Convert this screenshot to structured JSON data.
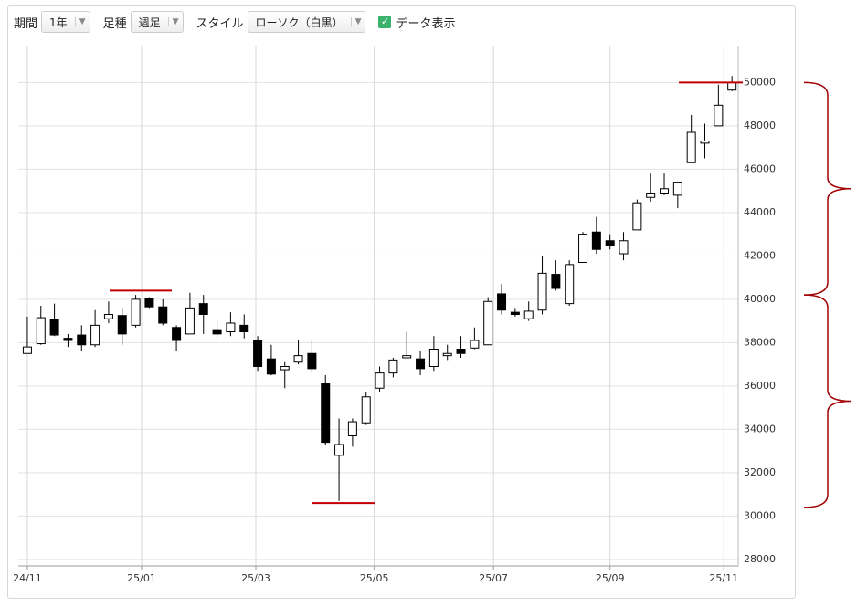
{
  "toolbar": {
    "period_label": "期間",
    "period_value": "1年",
    "bar_label": "足種",
    "bar_value": "週足",
    "style_label": "スタイル",
    "style_value": "ローソク（白黒）",
    "show_data": "データ表示"
  },
  "chart_data": {
    "type": "candlestick",
    "categories": [
      null,
      null,
      null,
      null,
      null,
      null,
      null,
      null,
      null,
      null,
      null,
      null,
      null,
      null,
      null,
      null,
      null,
      null,
      null,
      null,
      null,
      null,
      null,
      null,
      null,
      null,
      null,
      null,
      null,
      null,
      null,
      null,
      null,
      null,
      null,
      null,
      null,
      null,
      null,
      null,
      null,
      null,
      null,
      null,
      null,
      null,
      null,
      null,
      null,
      null,
      null,
      null,
      null
    ],
    "open": [
      37500,
      37950,
      39050,
      38200,
      38350,
      37900,
      39100,
      39250,
      38800,
      40050,
      39650,
      38700,
      38400,
      39800,
      38600,
      38500,
      38800,
      38100,
      37250,
      36750,
      37100,
      37500,
      36100,
      32800,
      33700,
      34300,
      35900,
      36600,
      37300,
      37250,
      36900,
      37400,
      37700,
      37750,
      37900,
      40250,
      39400,
      39100,
      39500,
      41150,
      39800,
      41700,
      43100,
      42700,
      42100,
      43200,
      44700,
      44900,
      44800,
      46300,
      47200,
      48000,
      49650
    ],
    "high": [
      39200,
      39700,
      39800,
      38400,
      38800,
      39500,
      39900,
      39600,
      40200,
      40100,
      40000,
      38800,
      40300,
      40200,
      39000,
      39400,
      39300,
      38300,
      37900,
      37100,
      38100,
      38100,
      36500,
      34500,
      34500,
      35700,
      36900,
      37300,
      38500,
      37600,
      38300,
      37900,
      38300,
      38700,
      40100,
      40700,
      39600,
      39900,
      42000,
      41800,
      41800,
      43100,
      43800,
      43000,
      43100,
      44600,
      45800,
      45800,
      45400,
      48500,
      48100,
      49900,
      50300
    ],
    "low": [
      37500,
      37900,
      38300,
      37800,
      37600,
      37800,
      38900,
      37900,
      38700,
      39600,
      38800,
      37600,
      38400,
      38400,
      38200,
      38300,
      38200,
      36700,
      36500,
      35900,
      37000,
      36600,
      33300,
      30700,
      33200,
      34200,
      35700,
      36400,
      37300,
      36500,
      36700,
      37200,
      37300,
      37700,
      37900,
      39300,
      39200,
      39000,
      39300,
      40400,
      39700,
      41700,
      42100,
      42300,
      41800,
      43200,
      44500,
      44800,
      44200,
      46300,
      46500,
      48000,
      49600
    ],
    "close": [
      37800,
      39150,
      38350,
      38100,
      37900,
      38800,
      39300,
      38400,
      40000,
      39650,
      38900,
      38100,
      39600,
      39300,
      38400,
      38900,
      38500,
      36900,
      36550,
      36900,
      37400,
      36800,
      33400,
      33300,
      34350,
      35500,
      36600,
      37200,
      37400,
      36800,
      37700,
      37500,
      37500,
      38100,
      39900,
      39500,
      39300,
      39450,
      41200,
      40500,
      41600,
      43000,
      42300,
      42500,
      42700,
      44450,
      44900,
      45100,
      45400,
      47700,
      47300,
      48950,
      50000
    ],
    "up_color": "#ffffff",
    "down_color": "#000000",
    "outline_color": "#000000",
    "xlim": [
      -0.67,
      52.46
    ],
    "xticks": [
      {
        "value": 0,
        "label": "24/11"
      },
      {
        "value": 8.43,
        "label": "25/01"
      },
      {
        "value": 16.86,
        "label": "25/03"
      },
      {
        "value": 25.6,
        "label": "25/05"
      },
      {
        "value": 34.4,
        "label": "25/07"
      },
      {
        "value": 43.0,
        "label": "25/09"
      },
      {
        "value": 51.4,
        "label": "25/11"
      }
    ],
    "ylim": [
      27700,
      51700
    ],
    "yticks": [
      28000,
      30000,
      32000,
      34000,
      36000,
      38000,
      40000,
      42000,
      44000,
      46000,
      48000,
      50000
    ],
    "grid": true,
    "reference_lines": [
      {
        "value": 40400,
        "x": [
          6.07,
          10.66
        ],
        "color": "#c00000"
      },
      {
        "value": 30600,
        "x": [
          21.04,
          25.63
        ],
        "color": "#c00000"
      },
      {
        "value": 50000,
        "x": [
          48.08,
          52.8
        ],
        "color": "#c00000"
      }
    ],
    "braces": [
      {
        "range": [
          50000,
          40200
        ],
        "color": "#a00000"
      },
      {
        "range": [
          40200,
          30400
        ],
        "color": "#a00000"
      }
    ]
  }
}
